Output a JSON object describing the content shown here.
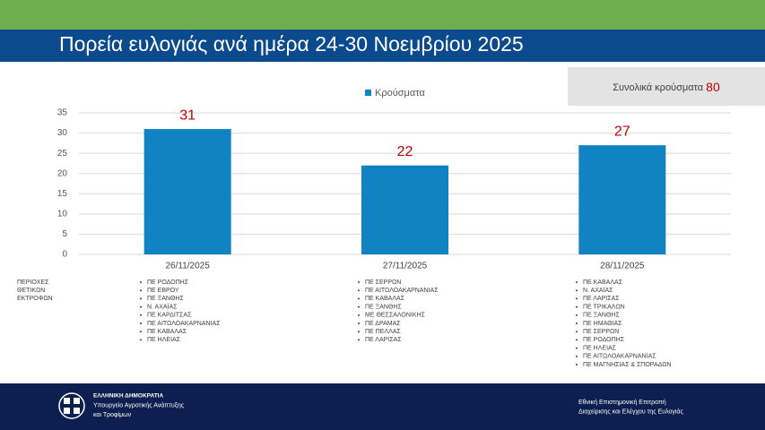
{
  "chart_data": {
    "type": "bar",
    "title": "Πορεία ευλογιάς ανά ημέρα 24-30 Νοεμβρίου 2025",
    "categories": [
      "26/11/2025",
      "27/11/2025",
      "28/11/2025"
    ],
    "series": [
      {
        "name": "Κρούσματα",
        "color": "#1182c2",
        "values": [
          31,
          22,
          27
        ]
      }
    ],
    "ylim": [
      0,
      35
    ],
    "yticks": [
      0,
      5,
      10,
      15,
      20,
      25,
      30,
      35
    ],
    "grid": true,
    "total_label": "Συνολικά κρούσματα",
    "total_value": 80,
    "regions_label": "ΠΕΡΙΟΧΕΣ ΘΕΤΙΚΩΝ ΕΚΤΡΟΦΩΝ",
    "regions": [
      [
        "ΠΕ ΡΟΔΟΠΗΣ",
        "ΠΕ ΕΒΡΟΥ",
        "ΠΕ ΞΑΝΘΗΣ",
        "Ν. ΑΧΑΪΑΣ",
        "ΠΕ ΚΑΡΔΙΤΣΑΣ",
        "ΠΕ ΑΙΤΩΛΟΑΚΑΡΝΑΝΙΑΣ",
        "ΠΕ ΚΑΒΑΛΑΣ",
        "ΠΕ ΗΛΕΙΑΣ"
      ],
      [
        "ΠΕ ΣΕΡΡΩΝ",
        "ΠΕ ΑΙΤΩΛΟΑΚΑΡΝΑΝΙΑΣ",
        "ΠΕ ΚΑΒΑΛΑΣ",
        "ΠΕ ΞΑΝΘΗΣ",
        "ΜΕ ΘΕΣΣΑΛΟΝΙΚΗΣ",
        "ΠΕ ΔΡΑΜΑΣ",
        "ΠΕ ΠΕΛΛΑΣ",
        "ΠΕ ΛΑΡΙΣΑΣ"
      ],
      [
        "ΠΕ ΚΑΒΑΛΑΣ",
        "Ν. ΑΧΑΪΑΣ",
        "ΠΕ ΛΑΡΙΣΑΣ",
        "ΠΕ ΤΡΙΚΑΛΩΝ",
        "ΠΕ ΞΑΝΘΗΣ",
        "ΠΕ ΗΜΑΘΙΑΣ",
        "ΠΕ ΣΕΡΡΩΝ",
        "ΠΕ ΡΟΔΟΠΗΣ",
        "ΠΕ ΗΛΕΙΑΣ",
        "ΠΕ ΑΙΤΩΛΟΑΚΑΡΝΑΝΙΑΣ",
        "ΠΕ ΜΑΓΝΗΣΙΑΣ & ΣΠΟΡΑΔΩΝ"
      ]
    ]
  },
  "footer": {
    "left": [
      "ΕΛΛΗΝΙΚΗ ΔΗΜΟΚΡΑΤΙΑ",
      "Υπουργείο Αγροτικής Ανάπτυξης",
      "και Τροφίμων"
    ],
    "right": [
      "Εθνική Επιστημονική Επιτροπή",
      "Διαχείρισης και Ελέγχου της Ευλογιάς"
    ]
  }
}
